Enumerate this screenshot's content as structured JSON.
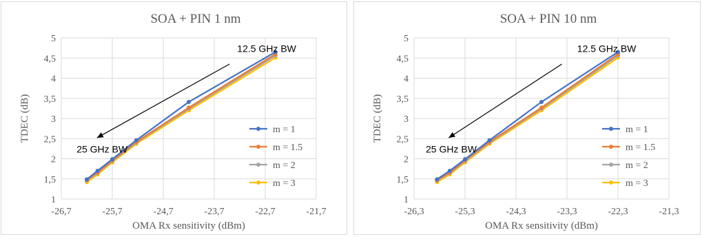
{
  "chart_data": [
    {
      "type": "line",
      "title": "SOA + PIN 1 nm",
      "xlabel": "OMA Rx sensitivity (dBm)",
      "ylabel": "TDEC (dB)",
      "xlim": [
        -26.7,
        -21.7
      ],
      "ylim": [
        1,
        5
      ],
      "xticks": [
        -26.7,
        -25.7,
        -24.7,
        -23.7,
        -22.7,
        -21.7
      ],
      "xtick_labels": [
        "-26,7",
        "-25,7",
        "-24,7",
        "-23,7",
        "-22,7",
        "-21,7"
      ],
      "yticks": [
        1,
        1.5,
        2,
        2.5,
        3,
        3.5,
        4,
        4.5,
        5
      ],
      "ytick_labels": [
        "1",
        "1,5",
        "2",
        "2,5",
        "3",
        "3,5",
        "4",
        "4,5",
        "5"
      ],
      "grid": true,
      "legend_position": "right",
      "series": [
        {
          "name": "m = 1",
          "color": "#4472c4",
          "x": [
            -26.2,
            -25.99,
            -25.7,
            -25.23,
            -24.2,
            -22.5
          ],
          "y": [
            1.49,
            1.7,
            1.99,
            2.46,
            3.41,
            4.65
          ]
        },
        {
          "name": "m = 1.5",
          "color": "#ed7d31",
          "x": [
            -26.2,
            -25.99,
            -25.7,
            -25.23,
            -24.2,
            -22.5
          ],
          "y": [
            1.47,
            1.66,
            1.96,
            2.42,
            3.27,
            4.6
          ]
        },
        {
          "name": "m = 2",
          "color": "#a5a5a5",
          "x": [
            -26.2,
            -25.99,
            -25.7,
            -25.23,
            -24.2,
            -22.5
          ],
          "y": [
            1.46,
            1.64,
            1.94,
            2.4,
            3.24,
            4.56
          ]
        },
        {
          "name": "m = 3",
          "color": "#ffc000",
          "x": [
            -26.2,
            -25.99,
            -25.7,
            -25.23,
            -24.2,
            -22.5
          ],
          "y": [
            1.42,
            1.61,
            1.91,
            2.37,
            3.2,
            4.51
          ]
        }
      ],
      "annotations": [
        {
          "text": "12.5 GHz BW",
          "x": -23.25,
          "y": 4.65
        },
        {
          "text": "25 GHz BW",
          "x": -26.4,
          "y": 2.15
        }
      ],
      "arrow": {
        "from": [
          -23.4,
          4.35
        ],
        "to": [
          -26.0,
          2.52
        ]
      }
    },
    {
      "type": "line",
      "title": "SOA + PIN 10 nm",
      "xlabel": "OMA Rx sensitivity (dBm)",
      "ylabel": "TDEC (dB)",
      "xlim": [
        -26.3,
        -21.3
      ],
      "ylim": [
        1,
        5
      ],
      "xticks": [
        -26.3,
        -25.3,
        -24.3,
        -23.3,
        -22.3,
        -21.3
      ],
      "xtick_labels": [
        "-26,3",
        "-25,3",
        "-24,3",
        "-23,3",
        "-22,3",
        "-21,3"
      ],
      "yticks": [
        1,
        1.5,
        2,
        2.5,
        3,
        3.5,
        4,
        4.5,
        5
      ],
      "ytick_labels": [
        "1",
        "1,5",
        "2",
        "2,5",
        "3",
        "3,5",
        "4",
        "4,5",
        "5"
      ],
      "grid": true,
      "legend_position": "right",
      "series": [
        {
          "name": "m = 1",
          "color": "#4472c4",
          "x": [
            -25.85,
            -25.6,
            -25.3,
            -24.82,
            -23.8,
            -22.3
          ],
          "y": [
            1.49,
            1.7,
            1.99,
            2.46,
            3.41,
            4.65
          ]
        },
        {
          "name": "m = 1.5",
          "color": "#ed7d31",
          "x": [
            -25.85,
            -25.6,
            -25.3,
            -24.82,
            -23.8,
            -22.3
          ],
          "y": [
            1.47,
            1.66,
            1.96,
            2.42,
            3.27,
            4.6
          ]
        },
        {
          "name": "m = 2",
          "color": "#a5a5a5",
          "x": [
            -25.85,
            -25.6,
            -25.3,
            -24.82,
            -23.8,
            -22.3
          ],
          "y": [
            1.46,
            1.64,
            1.94,
            2.4,
            3.24,
            4.56
          ]
        },
        {
          "name": "m = 3",
          "color": "#ffc000",
          "x": [
            -25.85,
            -25.6,
            -25.3,
            -24.82,
            -23.8,
            -22.3
          ],
          "y": [
            1.42,
            1.61,
            1.91,
            2.37,
            3.2,
            4.51
          ]
        }
      ],
      "annotations": [
        {
          "text": "12.5 GHz BW",
          "x": -23.1,
          "y": 4.65
        },
        {
          "text": "25 GHz BW",
          "x": -26.07,
          "y": 2.15
        }
      ],
      "arrow": {
        "from": [
          -23.4,
          4.35
        ],
        "to": [
          -25.62,
          2.52
        ]
      }
    }
  ]
}
